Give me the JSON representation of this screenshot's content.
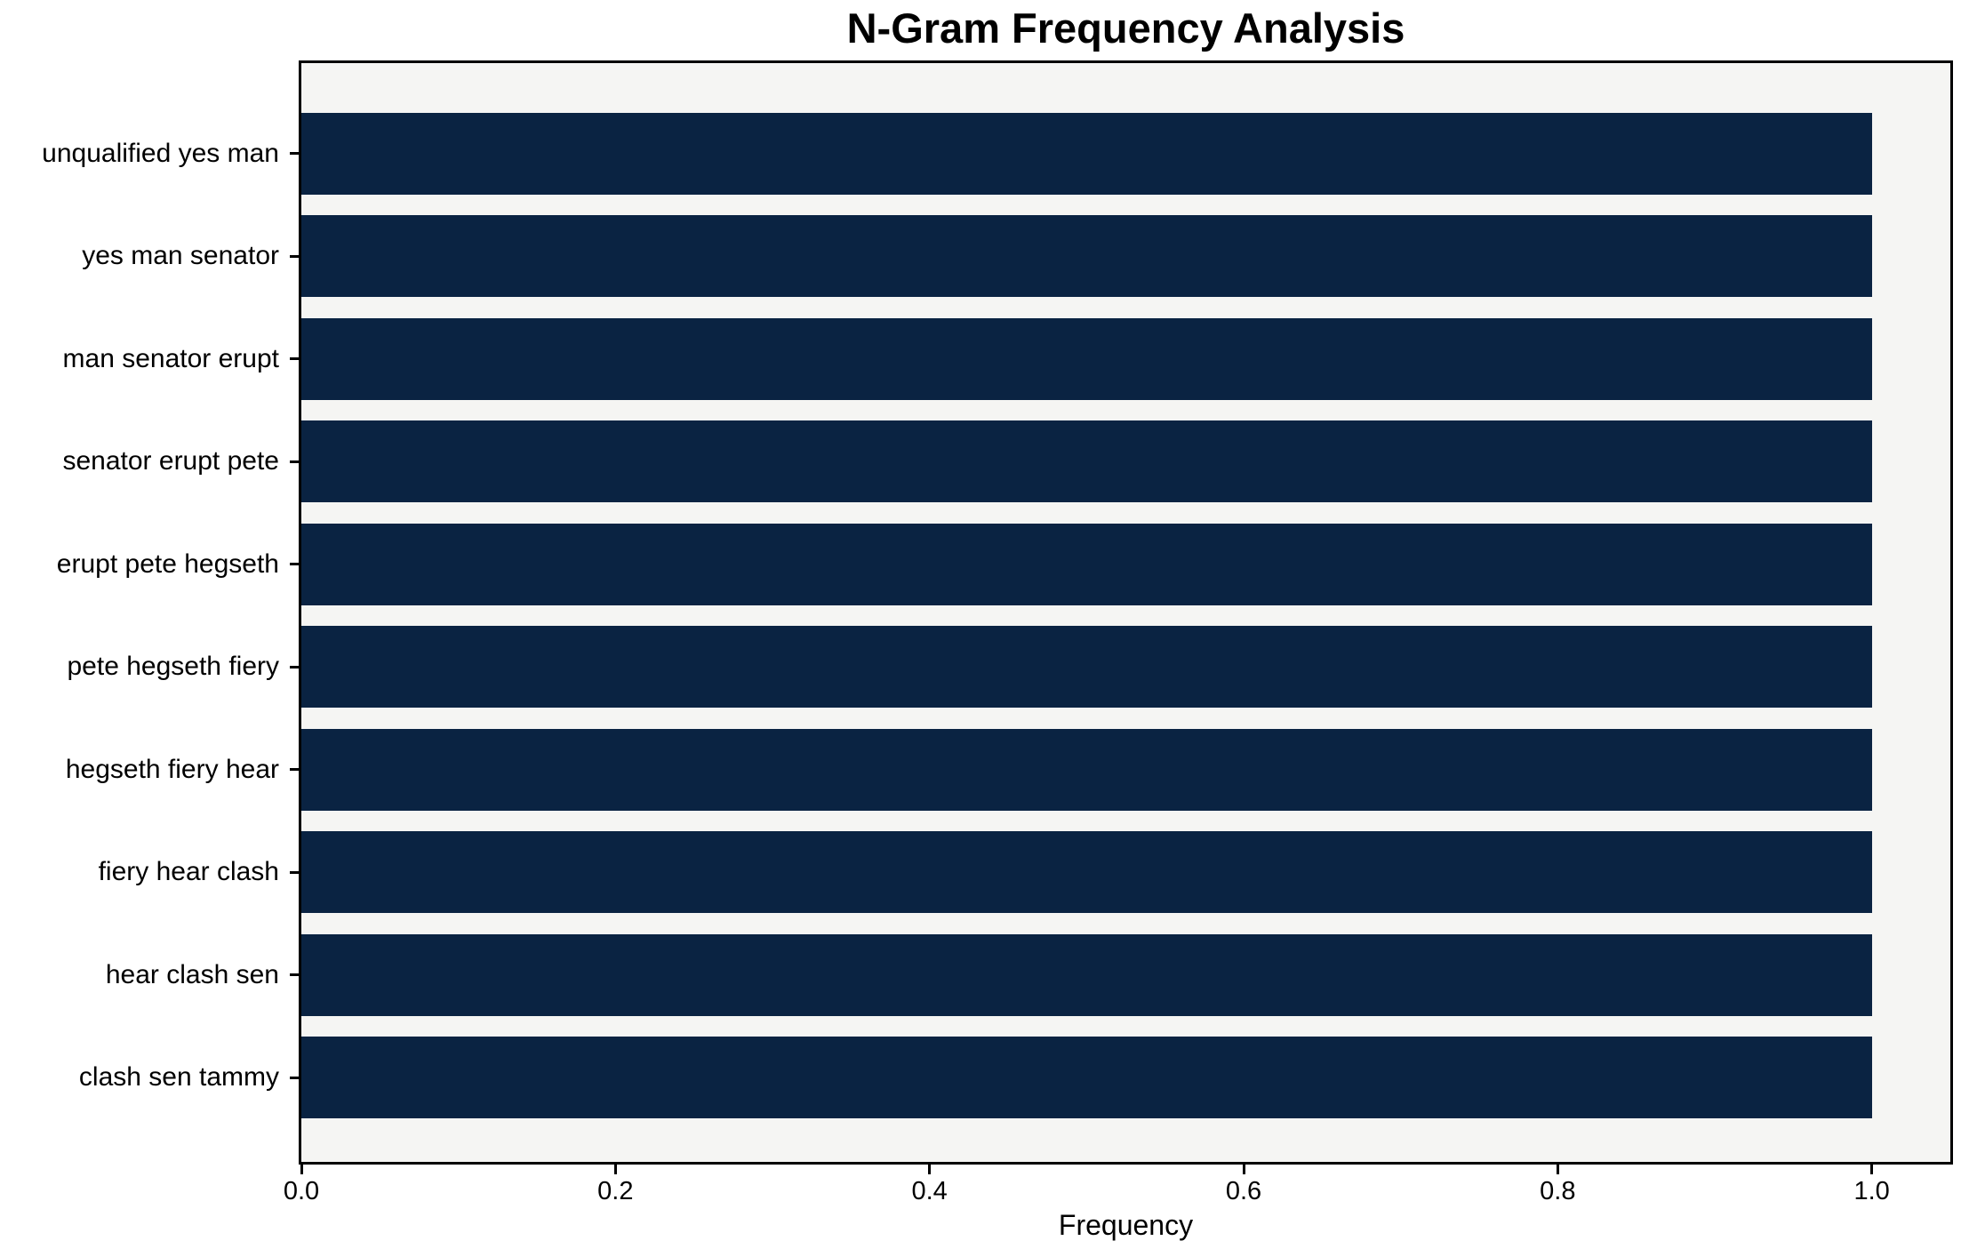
{
  "chart_data": {
    "type": "bar",
    "orientation": "horizontal",
    "title": "N-Gram Frequency Analysis",
    "xlabel": "Frequency",
    "ylabel": "",
    "categories": [
      "unqualified yes man",
      "yes man senator",
      "man senator erupt",
      "senator erupt pete",
      "erupt pete hegseth",
      "pete hegseth fiery",
      "hegseth fiery hear",
      "fiery hear clash",
      "hear clash sen",
      "clash sen tammy"
    ],
    "values": [
      1.0,
      1.0,
      1.0,
      1.0,
      1.0,
      1.0,
      1.0,
      1.0,
      1.0,
      1.0
    ],
    "xlim": [
      0,
      1.05
    ],
    "x_ticks": [
      0.0,
      0.2,
      0.4,
      0.6,
      0.8,
      1.0
    ],
    "x_tick_labels": [
      "0.0",
      "0.2",
      "0.4",
      "0.6",
      "0.8",
      "1.0"
    ],
    "grid": false,
    "legend": null,
    "colors": {
      "bar": "#0a2342",
      "plot_bg": "#f5f5f3",
      "spine": "#000000",
      "text": "#000000"
    }
  }
}
